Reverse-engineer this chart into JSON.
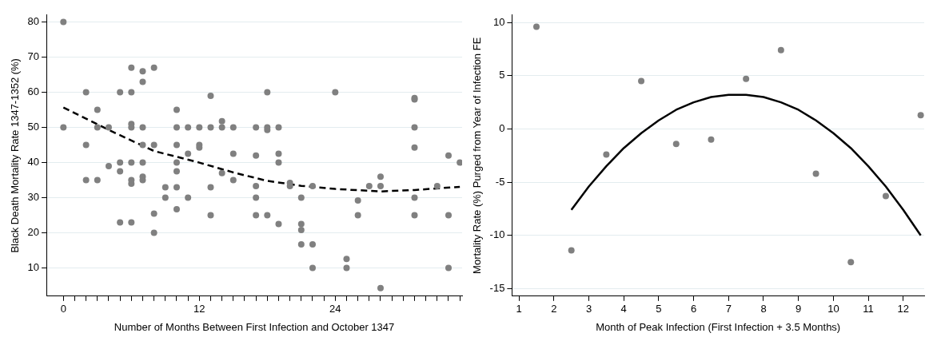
{
  "chart_data": [
    {
      "type": "scatter",
      "xlabel": "Number of Months Between First Infection and October 1347",
      "ylabel": "Black Death Mortality Rate 1347-1352 (%)",
      "xlim": [
        -1.5,
        35.2
      ],
      "ylim": [
        2,
        82
      ],
      "xticks": [
        0,
        {
          "value": 1,
          "label": null
        },
        {
          "value": 2,
          "label": null
        },
        {
          "value": 3,
          "label": null
        },
        {
          "value": 4,
          "label": null
        },
        {
          "value": 5,
          "label": null
        },
        {
          "value": 6,
          "label": null
        },
        {
          "value": 7,
          "label": null
        },
        {
          "value": 8,
          "label": null
        },
        {
          "value": 9,
          "label": null
        },
        {
          "value": 10,
          "label": null
        },
        {
          "value": 11,
          "label": null
        },
        12,
        {
          "value": 13,
          "label": null
        },
        {
          "value": 14,
          "label": null
        },
        {
          "value": 15,
          "label": null
        },
        {
          "value": 16,
          "label": null
        },
        {
          "value": 17,
          "label": null
        },
        {
          "value": 18,
          "label": null
        },
        {
          "value": 19,
          "label": null
        },
        {
          "value": 20,
          "label": null
        },
        {
          "value": 21,
          "label": null
        },
        {
          "value": 22,
          "label": null
        },
        {
          "value": 23,
          "label": null
        },
        24,
        {
          "value": 25,
          "label": null
        },
        {
          "value": 26,
          "label": null
        },
        {
          "value": 27,
          "label": null
        },
        {
          "value": 28,
          "label": null
        },
        {
          "value": 29,
          "label": null
        },
        {
          "value": 30,
          "label": null
        },
        {
          "value": 31,
          "label": null
        },
        {
          "value": 32,
          "label": null
        },
        {
          "value": 33,
          "label": null
        },
        {
          "value": 34,
          "label": null
        },
        {
          "value": 35,
          "label": null
        }
      ],
      "yticks": [
        10,
        20,
        30,
        40,
        50,
        60,
        70,
        80
      ],
      "grid": "y",
      "legend": false,
      "marker": "circle",
      "series": [
        {
          "type": "scatter",
          "color": "#808080",
          "x": [
            0,
            0,
            2,
            2,
            2,
            3,
            3,
            3,
            4,
            4,
            5,
            5,
            5,
            5,
            6,
            6,
            6,
            6,
            6,
            6,
            6,
            6,
            7,
            7,
            7,
            7,
            7,
            7,
            7,
            8,
            8,
            8,
            8,
            9,
            9,
            10,
            10,
            10,
            10,
            10,
            10,
            10,
            11,
            11,
            11,
            12,
            12,
            12,
            13,
            13,
            13,
            13,
            14,
            14,
            14,
            15,
            15,
            15,
            17,
            17,
            17,
            17,
            17,
            18,
            18,
            18,
            18,
            19,
            19,
            19,
            19,
            20,
            20,
            21,
            21,
            21,
            21,
            22,
            22,
            22,
            24,
            25,
            25,
            26,
            26,
            27,
            28,
            28,
            28,
            31,
            31,
            31,
            31,
            31,
            31,
            33,
            34,
            34,
            34,
            35
          ],
          "values": [
            80,
            50,
            60,
            45,
            35,
            55,
            50,
            35,
            50,
            39,
            60,
            40,
            37.5,
            23,
            67,
            60,
            51,
            50,
            40,
            35,
            34,
            23,
            66,
            63,
            50,
            45,
            40,
            36,
            35,
            67,
            45,
            25.5,
            20,
            33,
            30,
            55,
            50,
            45,
            40,
            37.5,
            33,
            26.7,
            50,
            42.5,
            30,
            50,
            45,
            44.3,
            59,
            50,
            33,
            25,
            51.8,
            50,
            37,
            50,
            42.5,
            35,
            50,
            42,
            33.3,
            30,
            25,
            60,
            50,
            49.3,
            25,
            50,
            42.5,
            40,
            22.5,
            34.2,
            33.3,
            30,
            22.5,
            20.8,
            16.7,
            33.3,
            16.7,
            10,
            60,
            12.6,
            10,
            29.2,
            25,
            33.3,
            36,
            33.3,
            4.3,
            58.4,
            58,
            50,
            44.3,
            30,
            25,
            33.3,
            42,
            25,
            10,
            40
          ]
        },
        {
          "type": "line",
          "color": "#000000",
          "line_style": "dashed",
          "marker": "none",
          "x": [
            0,
            4,
            8,
            12,
            15,
            18,
            21,
            24,
            28,
            31,
            35
          ],
          "values": [
            55.7,
            49.3,
            43.3,
            40,
            37.2,
            34.8,
            33.4,
            32.5,
            31.8,
            32.2,
            33.1
          ]
        }
      ]
    },
    {
      "type": "scatter",
      "xlabel": "Month of Peak Infection (First Infection + 3.5 Months)",
      "ylabel": "Mortality Rate (%) Purged from Year of Infection FE",
      "xlim": [
        0.8,
        12.6
      ],
      "ylim": [
        -15.7,
        10.7
      ],
      "xticks": [
        1,
        2,
        3,
        4,
        5,
        6,
        7,
        8,
        9,
        10,
        11,
        12
      ],
      "yticks": [
        -15,
        -10,
        -5,
        0,
        5,
        10
      ],
      "grid": "y",
      "legend": false,
      "marker": "circle",
      "series": [
        {
          "type": "scatter",
          "color": "#808080",
          "x": [
            1.5,
            2.5,
            3.5,
            4.5,
            5.5,
            6.5,
            7.5,
            8.5,
            9.5,
            10.5,
            11.5,
            12.5
          ],
          "values": [
            9.6,
            -11.4,
            -2.4,
            4.5,
            -1.4,
            -1,
            4.7,
            7.4,
            -4.2,
            -12.5,
            -6.3,
            1.3
          ]
        },
        {
          "type": "line",
          "color": "#000000",
          "line_style": "solid",
          "marker": "none",
          "x": [
            2.5,
            3,
            3.5,
            4,
            4.5,
            5,
            5.5,
            6,
            6.5,
            7,
            7.5,
            8,
            8.5,
            9,
            9.5,
            10,
            10.5,
            11,
            11.5,
            12,
            12.5
          ],
          "values": [
            -7.6,
            -5.4,
            -3.5,
            -1.8,
            -0.4,
            0.8,
            1.8,
            2.5,
            3,
            3.2,
            3.2,
            3,
            2.5,
            1.8,
            0.8,
            -0.4,
            -1.8,
            -3.5,
            -5.4,
            -7.6,
            -10
          ]
        }
      ]
    }
  ]
}
